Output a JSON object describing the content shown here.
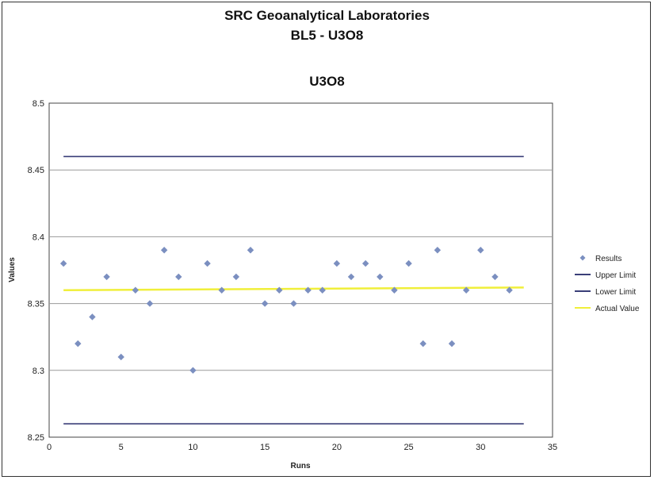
{
  "chart_data": {
    "type": "scatter",
    "title": "SRC Geoanalytical Laboratories",
    "subtitle": "BL5 - U3O8",
    "chart_title": "U3O8",
    "xlabel": "Runs",
    "ylabel": "Values",
    "xlim": [
      0,
      35
    ],
    "ylim": [
      8.25,
      8.5
    ],
    "x_ticks": [
      0,
      5,
      10,
      15,
      20,
      25,
      30,
      35
    ],
    "y_ticks": [
      8.25,
      8.3,
      8.35,
      8.4,
      8.45,
      8.5
    ],
    "grid": "horizontal",
    "legend_position": "right",
    "series": [
      {
        "name": "Results",
        "kind": "points",
        "color": "#7b8fc0",
        "x": [
          1,
          2,
          3,
          4,
          5,
          6,
          7,
          8,
          9,
          10,
          11,
          12,
          13,
          14,
          15,
          16,
          17,
          18,
          19,
          20,
          21,
          22,
          23,
          24,
          25,
          26,
          27,
          28,
          29,
          30,
          31,
          32
        ],
        "y": [
          8.38,
          8.32,
          8.34,
          8.37,
          8.31,
          8.36,
          8.35,
          8.39,
          8.37,
          8.3,
          8.38,
          8.36,
          8.37,
          8.39,
          8.35,
          8.36,
          8.35,
          8.36,
          8.36,
          8.38,
          8.37,
          8.38,
          8.37,
          8.36,
          8.38,
          8.32,
          8.39,
          8.32,
          8.36,
          8.39,
          8.37,
          8.36
        ]
      },
      {
        "name": "Upper Limit",
        "kind": "line",
        "color": "#3a3f78",
        "x": [
          1,
          33
        ],
        "y": [
          8.46,
          8.46
        ]
      },
      {
        "name": "Lower Limit",
        "kind": "line",
        "color": "#3a3f78",
        "x": [
          1,
          33
        ],
        "y": [
          8.26,
          8.26
        ]
      },
      {
        "name": "Actual Value",
        "kind": "line",
        "color": "#f0ef3a",
        "x": [
          1,
          33
        ],
        "y": [
          8.36,
          8.362
        ]
      }
    ]
  }
}
